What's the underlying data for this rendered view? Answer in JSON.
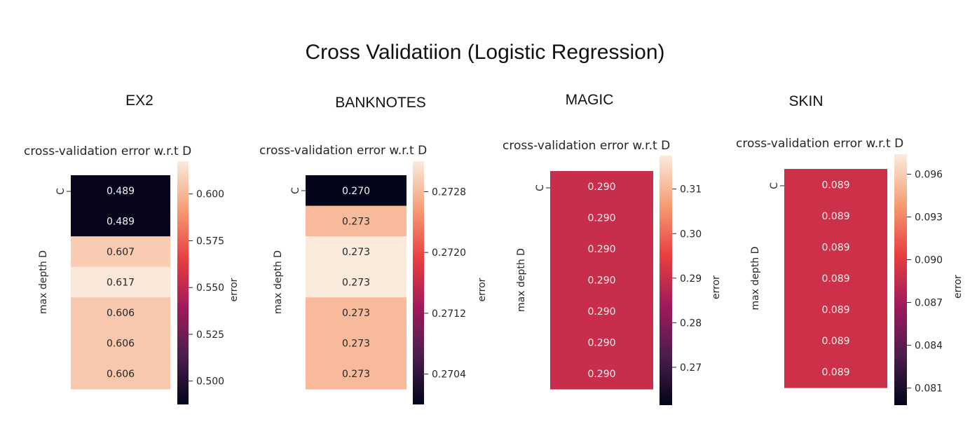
{
  "title": "Cross Validatiion (Logistic Regression)",
  "colors": {
    "cmap": [
      "#03051a",
      "#4c1d4b",
      "#a11a5b",
      "#e83f3f",
      "#f69c73",
      "#faebdd"
    ]
  },
  "chart_data": [
    {
      "type": "heatmap",
      "dataset": "EX2",
      "title": "cross-validation error w.r.t D",
      "ylabel": "max depth D",
      "ytick_labels": [
        "C"
      ],
      "colorbar_label": "error",
      "colorbar_range": [
        0.4875,
        0.6175
      ],
      "colorbar_ticks": [
        "0.500",
        "0.525",
        "0.550",
        "0.575",
        "0.600"
      ],
      "values": [
        0.489,
        0.489,
        0.607,
        0.617,
        0.606,
        0.606,
        0.606
      ],
      "labels": [
        "0.489",
        "0.489",
        "0.607",
        "0.617",
        "0.606",
        "0.606",
        "0.606"
      ]
    },
    {
      "type": "heatmap",
      "dataset": "BANKNOTES",
      "title": "cross-validation error w.r.t D",
      "ylabel": "max depth D",
      "ytick_labels": [
        "C"
      ],
      "colorbar_label": "error",
      "colorbar_range": [
        0.27,
        0.2732
      ],
      "colorbar_ticks": [
        "0.2704",
        "0.2712",
        "0.2720",
        "0.2728"
      ],
      "values": [
        0.27,
        0.2728,
        0.2732,
        0.2732,
        0.2728,
        0.2728,
        0.2728
      ],
      "labels": [
        "0.270",
        "0.273",
        "0.273",
        "0.273",
        "0.273",
        "0.273",
        "0.273"
      ]
    },
    {
      "type": "heatmap",
      "dataset": "MAGIC",
      "title": "cross-validation error w.r.t D",
      "ylabel": "max depth D",
      "ytick_labels": [
        "C"
      ],
      "colorbar_label": "error",
      "colorbar_range": [
        0.2615,
        0.3175
      ],
      "colorbar_ticks": [
        "0.27",
        "0.28",
        "0.29",
        "0.30",
        "0.31"
      ],
      "values": [
        0.29,
        0.29,
        0.29,
        0.29,
        0.29,
        0.29,
        0.29
      ],
      "labels": [
        "0.290",
        "0.290",
        "0.290",
        "0.290",
        "0.290",
        "0.290",
        "0.290"
      ]
    },
    {
      "type": "heatmap",
      "dataset": "SKIN",
      "title": "cross-validation error w.r.t D",
      "ylabel": "max depth D",
      "ytick_labels": [
        "C"
      ],
      "colorbar_label": "error",
      "colorbar_range": [
        0.0798,
        0.0974
      ],
      "colorbar_ticks": [
        "0.081",
        "0.084",
        "0.087",
        "0.090",
        "0.093",
        "0.096"
      ],
      "values": [
        0.089,
        0.089,
        0.089,
        0.089,
        0.089,
        0.089,
        0.089
      ],
      "labels": [
        "0.089",
        "0.089",
        "0.089",
        "0.089",
        "0.089",
        "0.089",
        "0.089"
      ]
    }
  ]
}
